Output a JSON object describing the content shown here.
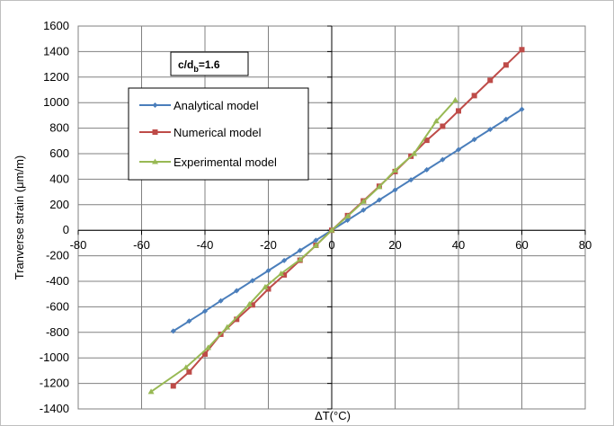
{
  "chart_data": {
    "type": "line",
    "xlabel": "ΔT(°C)",
    "ylabel": "Tranverse strain (μm/m)",
    "xlim": [
      -80,
      80
    ],
    "ylim": [
      -1400,
      1600
    ],
    "xticks": [
      -80,
      -60,
      -40,
      -20,
      0,
      20,
      40,
      60,
      80
    ],
    "yticks": [
      -1400,
      -1200,
      -1000,
      -800,
      -600,
      -400,
      -200,
      0,
      200,
      400,
      600,
      800,
      1000,
      1200,
      1400,
      1600
    ],
    "grid": true,
    "legend_position": "upper-left",
    "annotation": {
      "main": "c/d",
      "sub": "b",
      "tail": "=1.6"
    },
    "series": [
      {
        "name": "Analytical model",
        "color": "#4A7EBB",
        "marker": "diamond",
        "x": [
          -50,
          -45,
          -40,
          -35,
          -30,
          -25,
          -20,
          -15,
          -10,
          -5,
          0,
          5,
          10,
          15,
          20,
          25,
          30,
          35,
          40,
          45,
          50,
          55,
          60
        ],
        "y": [
          -790,
          -712,
          -634,
          -553,
          -474,
          -395,
          -316,
          -237,
          -158,
          -79,
          0,
          79,
          158,
          237,
          316,
          395,
          474,
          553,
          632,
          711,
          790,
          869,
          948
        ]
      },
      {
        "name": "Numerical model",
        "color": "#BE4B48",
        "marker": "square",
        "x": [
          -50,
          -45,
          -40,
          -35,
          -30,
          -25,
          -20,
          -15,
          -10,
          -5,
          0,
          5,
          10,
          15,
          20,
          25,
          30,
          35,
          40,
          45,
          50,
          55,
          60
        ],
        "y": [
          -1220,
          -1110,
          -970,
          -815,
          -698,
          -585,
          -460,
          -350,
          -235,
          -118,
          0,
          115,
          230,
          345,
          460,
          580,
          705,
          815,
          935,
          1055,
          1175,
          1295,
          1415
        ]
      },
      {
        "name": "Experimental model",
        "color": "#98B954",
        "marker": "triangle",
        "x": [
          -57,
          -46,
          -39,
          -33,
          -26,
          -21,
          -16,
          -10,
          -5,
          0,
          5,
          10,
          15,
          20,
          26,
          33,
          39
        ],
        "y": [
          -1265,
          -1075,
          -920,
          -760,
          -580,
          -445,
          -340,
          -230,
          -120,
          0,
          110,
          225,
          340,
          470,
          600,
          855,
          1020
        ]
      }
    ]
  }
}
